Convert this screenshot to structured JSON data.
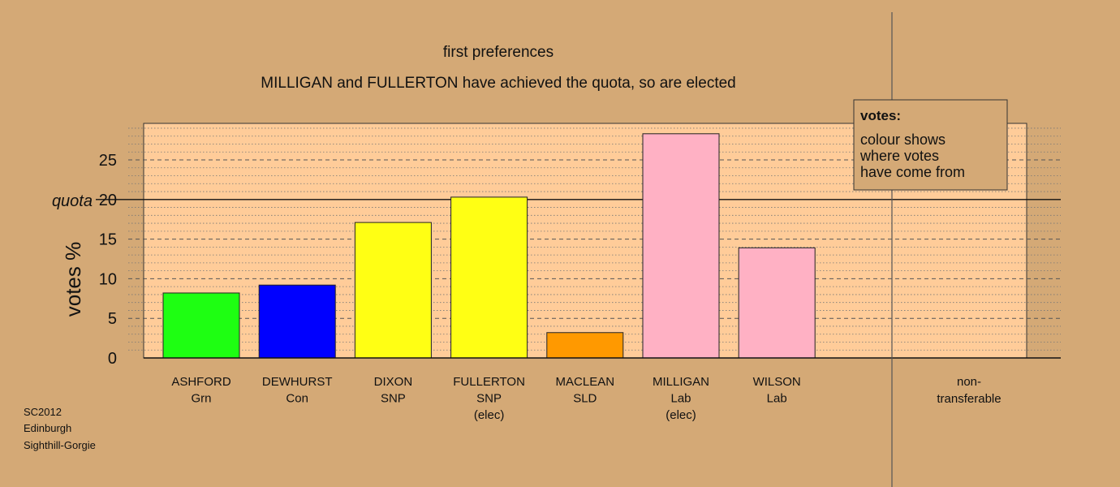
{
  "colors": {
    "background": "#D4A976",
    "plot_area": "#FFCC99",
    "Grn": "#1EFF12",
    "Con": "#0000FF",
    "SNP": "#FFFF14",
    "SLD": "#FF9900",
    "Lab": "#FFB1C4"
  },
  "footer": {
    "line1": "SC2012",
    "line2": "Edinburgh",
    "line3": "Sighthill-Gorgie"
  },
  "legend": {
    "title": "votes:",
    "line1": "colour shows",
    "line2": "where votes",
    "line3": "have come from"
  },
  "chart_data": {
    "type": "bar",
    "title": "first preferences",
    "subtitle": "MILLIGAN and FULLERTON have achieved the quota, so are elected",
    "ylabel": "votes %",
    "xlabel": "",
    "ylim": [
      0,
      29.5
    ],
    "yticks": [
      0,
      5,
      10,
      15,
      20,
      25
    ],
    "grid": true,
    "legend_position": "top-right",
    "quota": {
      "label": "quota",
      "value": 20
    },
    "categories": [
      {
        "name": "ASHFORD",
        "party": "Grn",
        "note": "",
        "value": 8.2,
        "color": "#1EFF12"
      },
      {
        "name": "DEWHURST",
        "party": "Con",
        "note": "",
        "value": 9.2,
        "color": "#0000FF"
      },
      {
        "name": "DIXON",
        "party": "SNP",
        "note": "",
        "value": 17.1,
        "color": "#FFFF14"
      },
      {
        "name": "FULLERTON",
        "party": "SNP",
        "note": "(elec)",
        "value": 20.3,
        "color": "#FFFF14"
      },
      {
        "name": "MACLEAN",
        "party": "SLD",
        "note": "",
        "value": 3.2,
        "color": "#FF9900"
      },
      {
        "name": "MILLIGAN",
        "party": "Lab",
        "note": "(elec)",
        "value": 28.3,
        "color": "#FFB1C4"
      },
      {
        "name": "WILSON",
        "party": "Lab",
        "note": "",
        "value": 13.9,
        "color": "#FFB1C4"
      }
    ],
    "non_transferable": {
      "label1": "non-",
      "label2": "transferable",
      "value": 0
    }
  }
}
